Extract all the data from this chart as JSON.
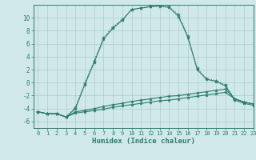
{
  "xlabel": "Humidex (Indice chaleur)",
  "x_values": [
    0,
    1,
    2,
    3,
    4,
    5,
    6,
    7,
    8,
    9,
    10,
    11,
    12,
    13,
    14,
    15,
    16,
    17,
    18,
    19,
    20,
    21,
    22,
    23
  ],
  "line1_y": [
    -4.5,
    -4.8,
    -4.8,
    -5.3,
    -4.0,
    -0.3,
    3.1,
    6.7,
    8.4,
    9.6,
    11.3,
    11.5,
    11.7,
    11.8,
    11.6,
    10.2,
    7.0,
    2.0,
    0.5,
    0.2,
    -0.5,
    -2.7,
    -3.2,
    -3.5
  ],
  "line2_y": [
    -4.5,
    -4.8,
    -4.8,
    -5.3,
    -3.8,
    -0.1,
    3.4,
    6.9,
    8.6,
    9.8,
    11.2,
    11.5,
    11.8,
    11.9,
    11.7,
    10.5,
    7.2,
    2.2,
    0.6,
    0.3,
    -0.3,
    -2.5,
    -3.0,
    -3.3
  ],
  "line3_y": [
    -4.5,
    -4.8,
    -4.8,
    -5.3,
    -4.5,
    -4.3,
    -4.0,
    -3.7,
    -3.4,
    -3.2,
    -2.9,
    -2.7,
    -2.5,
    -2.3,
    -2.1,
    -2.0,
    -1.8,
    -1.6,
    -1.4,
    -1.2,
    -1.0,
    -2.5,
    -3.0,
    -3.3
  ],
  "line4_y": [
    -4.5,
    -4.8,
    -4.8,
    -5.3,
    -4.7,
    -4.5,
    -4.3,
    -4.1,
    -3.8,
    -3.6,
    -3.4,
    -3.2,
    -3.0,
    -2.8,
    -2.7,
    -2.5,
    -2.3,
    -2.1,
    -1.9,
    -1.7,
    -1.5,
    -2.5,
    -3.0,
    -3.3
  ],
  "line_color": "#2e7d6e",
  "bg_color": "#d0e8ea",
  "grid_color": "#aaccd0",
  "ylim": [
    -7,
    12
  ],
  "xlim": [
    -0.5,
    23
  ],
  "yticks": [
    -6,
    -4,
    -2,
    0,
    2,
    4,
    6,
    8,
    10
  ],
  "xticks": [
    0,
    1,
    2,
    3,
    4,
    5,
    6,
    7,
    8,
    9,
    10,
    11,
    12,
    13,
    14,
    15,
    16,
    17,
    18,
    19,
    20,
    21,
    22,
    23
  ]
}
